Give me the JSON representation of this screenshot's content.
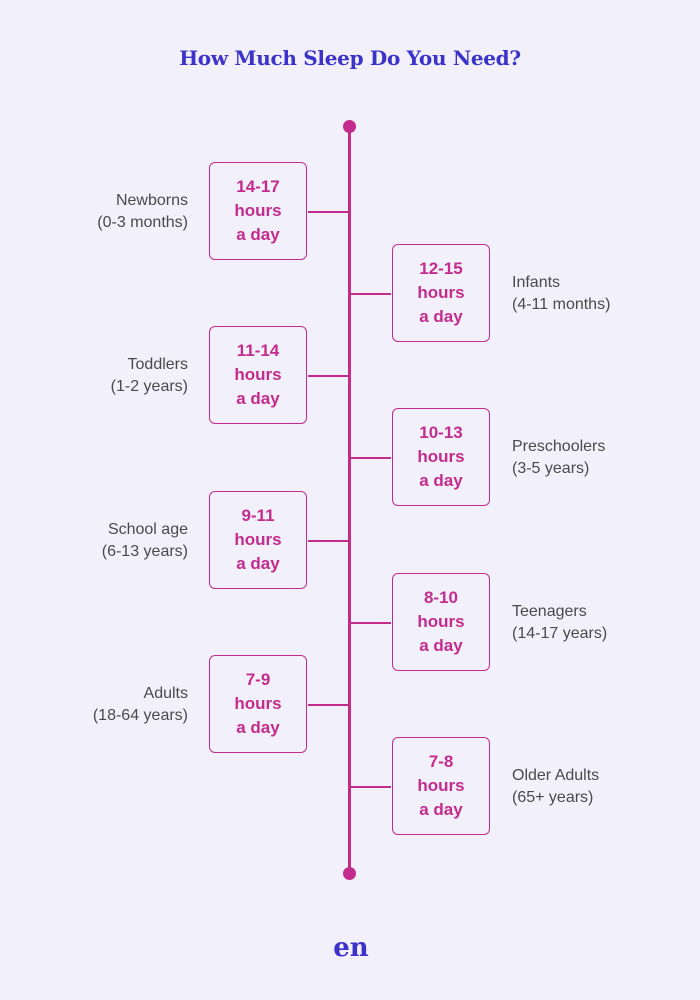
{
  "title": "How Much Sleep Do You Need?",
  "logo_text": "en",
  "colors": {
    "accent": "#c32c8d",
    "title": "#3b32c9",
    "background": "#f1f0fb",
    "label": "#4a4a4a"
  },
  "entries": [
    {
      "group": "Newborns",
      "age": "(0-3 months)",
      "range": "14-17",
      "unit": "hours",
      "period": "a day",
      "side": "left"
    },
    {
      "group": "Infants",
      "age": "(4-11 months)",
      "range": "12-15",
      "unit": "hours",
      "period": "a day",
      "side": "right"
    },
    {
      "group": "Toddlers",
      "age": "(1-2 years)",
      "range": "11-14",
      "unit": "hours",
      "period": "a day",
      "side": "left"
    },
    {
      "group": "Preschoolers",
      "age": "(3-5 years)",
      "range": "10-13",
      "unit": "hours",
      "period": "a day",
      "side": "right"
    },
    {
      "group": "School age",
      "age": "(6-13 years)",
      "range": "9-11",
      "unit": "hours",
      "period": "a day",
      "side": "left"
    },
    {
      "group": "Teenagers",
      "age": "(14-17 years)",
      "range": "8-10",
      "unit": "hours",
      "period": "a day",
      "side": "right"
    },
    {
      "group": "Adults",
      "age": "(18-64 years)",
      "range": "7-9",
      "unit": "hours",
      "period": "a day",
      "side": "left"
    },
    {
      "group": "Older Adults",
      "age": "(65+ years)",
      "range": "7-8",
      "unit": "hours",
      "period": "a day",
      "side": "right"
    }
  ]
}
